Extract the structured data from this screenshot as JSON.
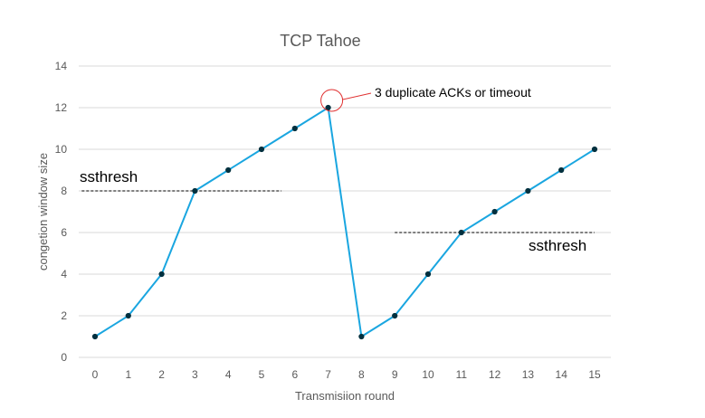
{
  "chart_data": {
    "type": "line",
    "title": "TCP Tahoe",
    "xlabel": "Transmisiion round",
    "ylabel": "congetion window size",
    "x": [
      0,
      1,
      2,
      3,
      4,
      5,
      6,
      7,
      8,
      9,
      10,
      11,
      12,
      13,
      14,
      15
    ],
    "xticks": [
      "0",
      "1",
      "2",
      "3",
      "4",
      "5",
      "6",
      "7",
      "8",
      "9",
      "10",
      "11",
      "12",
      "13",
      "14",
      "15"
    ],
    "yticks": [
      "0",
      "2",
      "4",
      "6",
      "8",
      "10",
      "12",
      "14"
    ],
    "ylim": [
      0,
      14
    ],
    "grid": true,
    "series": [
      {
        "values": [
          1,
          2,
          4,
          8,
          9,
          10,
          11,
          12,
          1,
          2,
          4,
          6,
          7,
          8,
          9,
          10
        ]
      }
    ],
    "annotations": {
      "loss_label": "3 duplicate ACKs or timeout",
      "loss_x": 7,
      "loss_y": 12,
      "ssthresh_1": {
        "label": "ssthresh",
        "y": 8,
        "x_from": -0.4,
        "x_to": 5.6
      },
      "ssthresh_2": {
        "label": "ssthresh",
        "y": 6,
        "x_from": 9,
        "x_to": 15
      }
    },
    "colors": {
      "line": "#1aa6e0",
      "marker": "#00303f",
      "grid": "#d9d9d9",
      "circle": "#e03030",
      "text": "#595959"
    }
  }
}
